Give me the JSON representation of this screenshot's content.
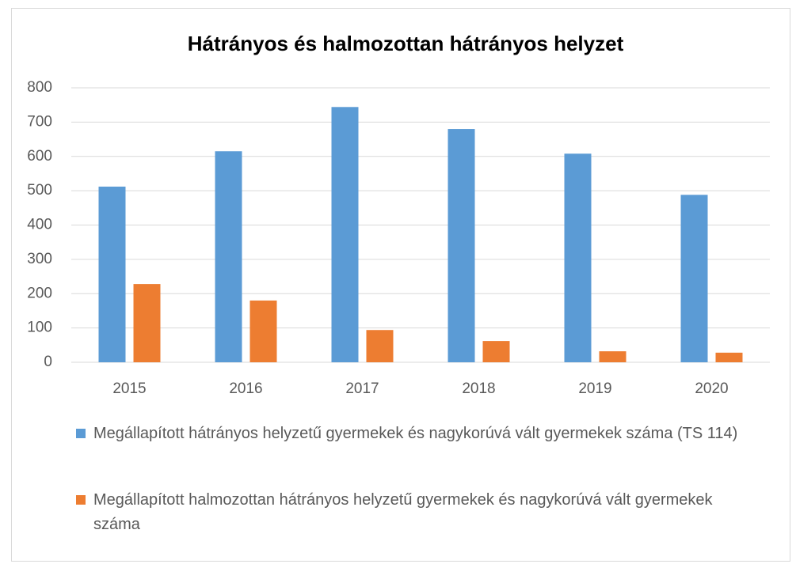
{
  "chart_data": {
    "type": "bar",
    "title": "Hátrányos és halmozottan hátrányos helyzet",
    "categories": [
      "2015",
      "2016",
      "2017",
      "2018",
      "2019",
      "2020"
    ],
    "series": [
      {
        "name": "Megállapított hátrányos helyzetű gyermekek és nagykorúvá vált gyermekek száma (TS 114)",
        "color": "#5b9bd5",
        "values": [
          512,
          615,
          744,
          680,
          608,
          488
        ]
      },
      {
        "name": "Megállapított halmozottan hátrányos helyzetű gyermekek és nagykorúvá vált gyermekek száma",
        "color": "#ed7d31",
        "values": [
          228,
          180,
          94,
          62,
          32,
          28
        ]
      }
    ],
    "ylim": [
      0,
      800
    ],
    "yticks": [
      0,
      100,
      200,
      300,
      400,
      500,
      600,
      700,
      800
    ],
    "grid": true,
    "legend": "bottom"
  }
}
